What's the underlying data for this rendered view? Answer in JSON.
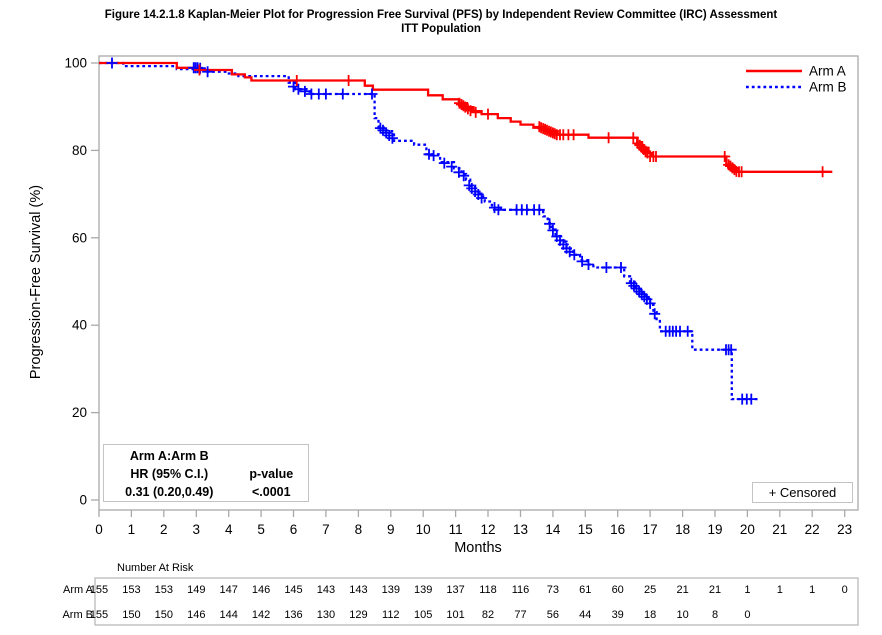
{
  "title": {
    "line1": "Figure 14.2.1.8 Kaplan-Meier Plot for Progression Free Survival (PFS) by Independent Review Committee (IRC) Assessment",
    "line2": "ITT Population"
  },
  "stats_box": {
    "comparison": "Arm A:Arm B",
    "hr_header": "HR (95% C.I.)",
    "p_header": "p-value",
    "hr_value": "0.31 (0.20,0.49)",
    "p_value": "<.0001"
  },
  "censored_box": {
    "label": "+ Censored"
  },
  "legend": {
    "entries": [
      {
        "label": "Arm A",
        "color": "#FF0000",
        "style": "solid"
      },
      {
        "label": "Arm B",
        "color": "#0000FF",
        "style": "dashed"
      }
    ]
  },
  "at_risk": {
    "header": "Number At Risk",
    "months": [
      0,
      1,
      2,
      3,
      4,
      5,
      6,
      7,
      8,
      9,
      10,
      11,
      12,
      13,
      14,
      15,
      16,
      17,
      18,
      19,
      20,
      21,
      22,
      23
    ],
    "rows": [
      {
        "label": "Arm A",
        "values": [
          155,
          153,
          153,
          149,
          147,
          146,
          145,
          143,
          143,
          139,
          139,
          137,
          118,
          116,
          73,
          61,
          60,
          25,
          21,
          21,
          1,
          1,
          1,
          0
        ]
      },
      {
        "label": "Arm B",
        "values": [
          155,
          150,
          150,
          146,
          144,
          142,
          136,
          130,
          129,
          112,
          105,
          101,
          82,
          77,
          56,
          44,
          39,
          18,
          10,
          8,
          0
        ]
      }
    ]
  },
  "chart_data": {
    "type": "line",
    "subtype": "kaplan-meier-step",
    "title": "Kaplan-Meier Plot for Progression Free Survival (PFS) by IRC Assessment, ITT Population",
    "xlabel": "Months",
    "ylabel": "Progression-Free Survival (%)",
    "xlim": [
      0,
      23.4
    ],
    "ylim": [
      0,
      100
    ],
    "xticks": [
      0,
      1,
      2,
      3,
      4,
      5,
      6,
      7,
      8,
      9,
      10,
      11,
      12,
      13,
      14,
      15,
      16,
      17,
      18,
      19,
      20,
      21,
      22,
      23
    ],
    "yticks": [
      0,
      20,
      40,
      60,
      80,
      100
    ],
    "grid": false,
    "legend_position": "top-right",
    "series": [
      {
        "name": "Arm A",
        "color": "#FF0000",
        "style": "solid",
        "end_month": 22.62,
        "steps": [
          [
            0,
            100
          ],
          [
            2.4,
            98.9
          ],
          [
            3.1,
            98.4
          ],
          [
            4.1,
            97.4
          ],
          [
            4.5,
            96.7
          ],
          [
            4.7,
            96.0
          ],
          [
            8.2,
            94.8
          ],
          [
            8.45,
            93.9
          ],
          [
            10.15,
            92.6
          ],
          [
            10.6,
            91.7
          ],
          [
            11.1,
            90.8
          ],
          [
            11.35,
            89.9
          ],
          [
            11.55,
            89.0
          ],
          [
            11.8,
            88.3
          ],
          [
            12.3,
            87.4
          ],
          [
            12.7,
            86.6
          ],
          [
            13.0,
            85.9
          ],
          [
            13.4,
            85.2
          ],
          [
            13.8,
            84.4
          ],
          [
            14.15,
            83.6
          ],
          [
            15.1,
            82.9
          ],
          [
            16.6,
            81.9
          ],
          [
            16.75,
            80.6
          ],
          [
            16.95,
            79.4
          ],
          [
            17.05,
            78.6
          ],
          [
            19.35,
            76.7
          ],
          [
            19.55,
            75.8
          ],
          [
            19.7,
            75.1
          ]
        ],
        "censors": [
          [
            3.1,
            98.4
          ],
          [
            6.1,
            96.0
          ],
          [
            7.7,
            96.0
          ],
          [
            11.12,
            90.8
          ],
          [
            11.18,
            90.5
          ],
          [
            11.24,
            90.2
          ],
          [
            11.3,
            89.9
          ],
          [
            11.38,
            89.5
          ],
          [
            11.46,
            89.1
          ],
          [
            11.62,
            88.7
          ],
          [
            12.0,
            88.3
          ],
          [
            13.58,
            85.4
          ],
          [
            13.64,
            85.2
          ],
          [
            13.7,
            85.0
          ],
          [
            13.76,
            84.8
          ],
          [
            13.82,
            84.6
          ],
          [
            13.88,
            84.4
          ],
          [
            13.94,
            84.2
          ],
          [
            14.0,
            84.0
          ],
          [
            14.06,
            83.8
          ],
          [
            14.12,
            83.6
          ],
          [
            14.22,
            83.6
          ],
          [
            14.32,
            83.6
          ],
          [
            14.48,
            83.6
          ],
          [
            14.64,
            83.6
          ],
          [
            15.72,
            82.9
          ],
          [
            16.48,
            82.9
          ],
          [
            16.62,
            81.6
          ],
          [
            16.68,
            81.2
          ],
          [
            16.74,
            80.7
          ],
          [
            16.8,
            80.2
          ],
          [
            16.86,
            79.8
          ],
          [
            16.92,
            79.4
          ],
          [
            17.0,
            78.6
          ],
          [
            17.1,
            78.6
          ],
          [
            17.18,
            78.6
          ],
          [
            19.3,
            78.6
          ],
          [
            19.42,
            76.7
          ],
          [
            19.48,
            76.4
          ],
          [
            19.54,
            76.0
          ],
          [
            19.6,
            75.6
          ],
          [
            19.66,
            75.2
          ],
          [
            19.74,
            75.1
          ],
          [
            19.82,
            75.1
          ],
          [
            22.32,
            75.1
          ]
        ]
      },
      {
        "name": "Arm B",
        "color": "#0000FF",
        "style": "dashed",
        "end_month": 20.32,
        "steps": [
          [
            0,
            100
          ],
          [
            0.75,
            99.3
          ],
          [
            2.4,
            98.6
          ],
          [
            3.3,
            98.0
          ],
          [
            3.95,
            97.6
          ],
          [
            4.3,
            97.0
          ],
          [
            5.85,
            95.5
          ],
          [
            6.05,
            94.0
          ],
          [
            6.5,
            92.9
          ],
          [
            8.5,
            87.4
          ],
          [
            8.62,
            85.5
          ],
          [
            8.78,
            84.4
          ],
          [
            9.1,
            82.2
          ],
          [
            9.72,
            81.3
          ],
          [
            10.1,
            79.1
          ],
          [
            10.52,
            77.3
          ],
          [
            10.95,
            75.9
          ],
          [
            11.18,
            74.6
          ],
          [
            11.32,
            73.3
          ],
          [
            11.45,
            71.9
          ],
          [
            11.6,
            70.6
          ],
          [
            11.75,
            69.4
          ],
          [
            11.9,
            68.3
          ],
          [
            12.12,
            66.9
          ],
          [
            12.4,
            66.4
          ],
          [
            13.7,
            64.9
          ],
          [
            13.84,
            63.4
          ],
          [
            13.95,
            61.9
          ],
          [
            14.08,
            60.4
          ],
          [
            14.24,
            59.1
          ],
          [
            14.42,
            57.5
          ],
          [
            14.62,
            56.1
          ],
          [
            14.84,
            54.9
          ],
          [
            15.05,
            53.9
          ],
          [
            15.25,
            53.2
          ],
          [
            16.2,
            51.2
          ],
          [
            16.38,
            49.9
          ],
          [
            16.52,
            48.6
          ],
          [
            16.68,
            47.4
          ],
          [
            16.84,
            46.2
          ],
          [
            17.0,
            44.7
          ],
          [
            17.1,
            43.0
          ],
          [
            17.2,
            41.4
          ],
          [
            17.3,
            38.6
          ],
          [
            18.3,
            34.4
          ],
          [
            19.52,
            23.1
          ]
        ],
        "censors": [
          [
            0.4,
            100
          ],
          [
            2.92,
            98.9
          ],
          [
            2.98,
            98.9
          ],
          [
            3.04,
            98.9
          ],
          [
            3.12,
            98.8
          ],
          [
            3.35,
            98.0
          ],
          [
            6.0,
            94.6
          ],
          [
            6.15,
            94.0
          ],
          [
            6.35,
            93.5
          ],
          [
            6.55,
            92.9
          ],
          [
            6.78,
            92.9
          ],
          [
            7.0,
            92.9
          ],
          [
            7.52,
            92.9
          ],
          [
            8.42,
            92.9
          ],
          [
            8.68,
            85.1
          ],
          [
            8.76,
            84.6
          ],
          [
            8.86,
            84.0
          ],
          [
            8.95,
            83.4
          ],
          [
            9.05,
            82.8
          ],
          [
            10.18,
            79.1
          ],
          [
            10.32,
            78.8
          ],
          [
            10.65,
            77.1
          ],
          [
            10.88,
            76.3
          ],
          [
            11.1,
            75.0
          ],
          [
            11.25,
            74.2
          ],
          [
            11.42,
            72.0
          ],
          [
            11.5,
            71.3
          ],
          [
            11.6,
            70.6
          ],
          [
            11.7,
            69.9
          ],
          [
            11.8,
            69.1
          ],
          [
            12.2,
            66.9
          ],
          [
            12.32,
            66.4
          ],
          [
            12.88,
            66.4
          ],
          [
            13.04,
            66.4
          ],
          [
            13.2,
            66.4
          ],
          [
            13.42,
            66.4
          ],
          [
            13.58,
            66.4
          ],
          [
            13.9,
            63.2
          ],
          [
            14.0,
            61.7
          ],
          [
            14.12,
            60.3
          ],
          [
            14.22,
            59.4
          ],
          [
            14.32,
            58.5
          ],
          [
            14.42,
            57.6
          ],
          [
            14.52,
            56.8
          ],
          [
            14.66,
            56.1
          ],
          [
            14.9,
            54.6
          ],
          [
            15.1,
            53.9
          ],
          [
            15.65,
            53.2
          ],
          [
            16.1,
            53.2
          ],
          [
            16.42,
            49.6
          ],
          [
            16.5,
            49.0
          ],
          [
            16.58,
            48.4
          ],
          [
            16.66,
            47.7
          ],
          [
            16.74,
            47.1
          ],
          [
            16.82,
            46.5
          ],
          [
            16.9,
            45.9
          ],
          [
            17.0,
            45.0
          ],
          [
            17.14,
            42.6
          ],
          [
            17.48,
            38.6
          ],
          [
            17.6,
            38.6
          ],
          [
            17.7,
            38.6
          ],
          [
            17.8,
            38.6
          ],
          [
            17.92,
            38.6
          ],
          [
            18.16,
            38.6
          ],
          [
            19.34,
            34.4
          ],
          [
            19.42,
            34.4
          ],
          [
            19.5,
            34.4
          ],
          [
            19.84,
            23.1
          ],
          [
            19.98,
            23.1
          ],
          [
            20.12,
            23.1
          ]
        ]
      }
    ]
  }
}
